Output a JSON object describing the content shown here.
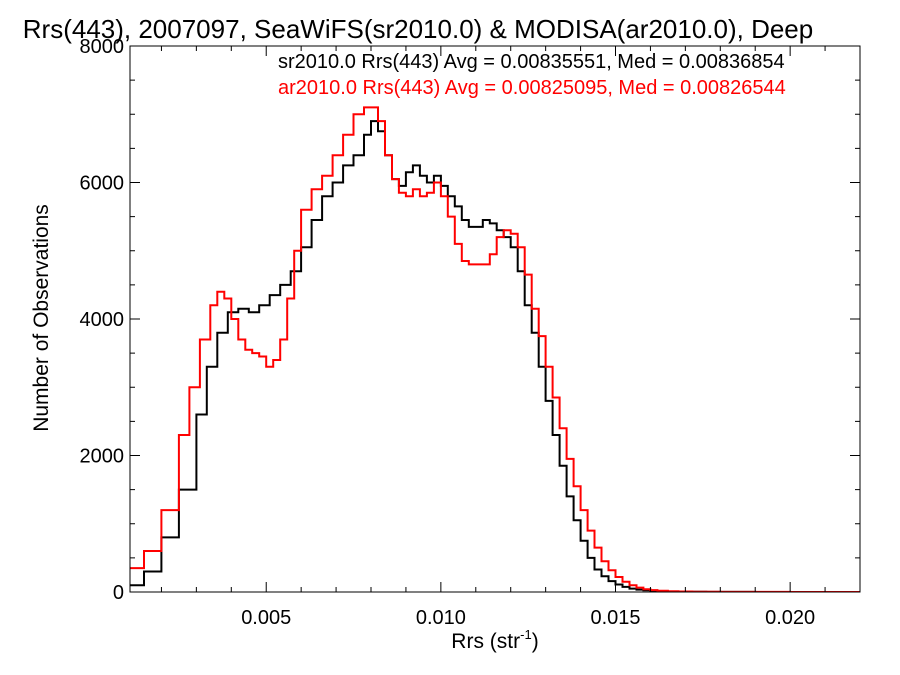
{
  "chart_data": {
    "type": "line",
    "step": true,
    "title": "Rrs(443), 2007097, SeaWiFS(sr2010.0) & MODISA(ar2010.0), Deep",
    "xlabel": "Rrs (str",
    "xlabel_sup": "-1",
    "xlabel_close": ")",
    "ylabel": "Number of Observations",
    "xlim": [
      0.0011,
      0.022
    ],
    "ylim": [
      0,
      8000
    ],
    "x_ticks": [
      0.005,
      0.01,
      0.015,
      0.02
    ],
    "x_tick_labels": [
      "0.005",
      "0.010",
      "0.015",
      "0.020"
    ],
    "y_ticks": [
      0,
      2000,
      4000,
      6000,
      8000
    ],
    "y_tick_labels": [
      "0",
      "2000",
      "4000",
      "6000",
      "8000"
    ],
    "legend": [
      {
        "text": "sr2010.0 Rrs(443) Avg = 0.00835551, Med = 0.00836854",
        "color": "#000000"
      },
      {
        "text": "ar2010.0 Rrs(443) Avg = 0.00825095, Med = 0.00826544",
        "color": "#ff0000"
      }
    ],
    "series": [
      {
        "name": "sr2010.0",
        "color": "#000000",
        "x": [
          0.0011,
          0.0015,
          0.002,
          0.0025,
          0.003,
          0.0033,
          0.0036,
          0.0039,
          0.0042,
          0.0045,
          0.0048,
          0.0051,
          0.0054,
          0.0057,
          0.006,
          0.0063,
          0.0066,
          0.0069,
          0.0072,
          0.0075,
          0.0078,
          0.008,
          0.0082,
          0.0084,
          0.0086,
          0.0088,
          0.009,
          0.0092,
          0.0094,
          0.0096,
          0.0098,
          0.01,
          0.0102,
          0.0104,
          0.0106,
          0.0108,
          0.011,
          0.0112,
          0.0114,
          0.0116,
          0.0118,
          0.012,
          0.0122,
          0.0124,
          0.0126,
          0.0128,
          0.013,
          0.0132,
          0.0134,
          0.0136,
          0.0138,
          0.014,
          0.0142,
          0.0144,
          0.0146,
          0.0148,
          0.015,
          0.0152,
          0.0154,
          0.0156,
          0.0158,
          0.016,
          0.0162,
          0.0165,
          0.0168,
          0.0172,
          0.0176,
          0.018,
          0.019,
          0.02,
          0.021,
          0.022
        ],
        "values": [
          100,
          300,
          800,
          1500,
          2600,
          3300,
          3800,
          4100,
          4150,
          4100,
          4200,
          4350,
          4500,
          4700,
          5050,
          5450,
          5800,
          6000,
          6250,
          6400,
          6700,
          6900,
          6750,
          6400,
          6050,
          5950,
          6150,
          6250,
          6100,
          6000,
          6100,
          5950,
          5800,
          5650,
          5450,
          5350,
          5350,
          5450,
          5400,
          5300,
          5200,
          5050,
          4700,
          4200,
          3800,
          3300,
          2800,
          2300,
          1850,
          1400,
          1050,
          750,
          500,
          330,
          230,
          160,
          110,
          75,
          50,
          35,
          25,
          18,
          12,
          8,
          5,
          3,
          2,
          1,
          0,
          0,
          0,
          0
        ]
      },
      {
        "name": "ar2010.0",
        "color": "#ff0000",
        "x": [
          0.0011,
          0.0015,
          0.002,
          0.0025,
          0.0028,
          0.0031,
          0.0034,
          0.0036,
          0.0038,
          0.004,
          0.0042,
          0.0044,
          0.0046,
          0.0048,
          0.005,
          0.0052,
          0.0054,
          0.0056,
          0.0058,
          0.006,
          0.0063,
          0.0066,
          0.0069,
          0.0072,
          0.0075,
          0.0078,
          0.008,
          0.0082,
          0.0084,
          0.0086,
          0.0088,
          0.009,
          0.0092,
          0.0094,
          0.0096,
          0.0098,
          0.01,
          0.0102,
          0.0104,
          0.0106,
          0.0108,
          0.011,
          0.0112,
          0.0114,
          0.0116,
          0.0118,
          0.012,
          0.0122,
          0.0124,
          0.0126,
          0.0128,
          0.013,
          0.0132,
          0.0134,
          0.0136,
          0.0138,
          0.014,
          0.0142,
          0.0144,
          0.0146,
          0.0148,
          0.015,
          0.0152,
          0.0154,
          0.0156,
          0.0158,
          0.016,
          0.0162,
          0.0165,
          0.0168,
          0.0172,
          0.0176,
          0.018,
          0.019,
          0.02,
          0.021,
          0.022
        ],
        "values": [
          350,
          600,
          1200,
          2300,
          3000,
          3700,
          4200,
          4400,
          4300,
          4000,
          3700,
          3550,
          3500,
          3450,
          3300,
          3400,
          3700,
          4300,
          5000,
          5600,
          5900,
          6100,
          6400,
          6700,
          7000,
          7100,
          7100,
          6900,
          6400,
          6050,
          5850,
          5800,
          5900,
          5800,
          5850,
          6000,
          5800,
          5500,
          5100,
          4850,
          4800,
          4800,
          4800,
          4950,
          5200,
          5300,
          5250,
          5050,
          4650,
          4150,
          3750,
          3300,
          2850,
          2400,
          1950,
          1550,
          1200,
          900,
          650,
          450,
          320,
          220,
          150,
          100,
          65,
          40,
          28,
          18,
          12,
          8,
          5,
          3,
          2,
          1,
          0,
          0,
          0
        ]
      }
    ]
  }
}
